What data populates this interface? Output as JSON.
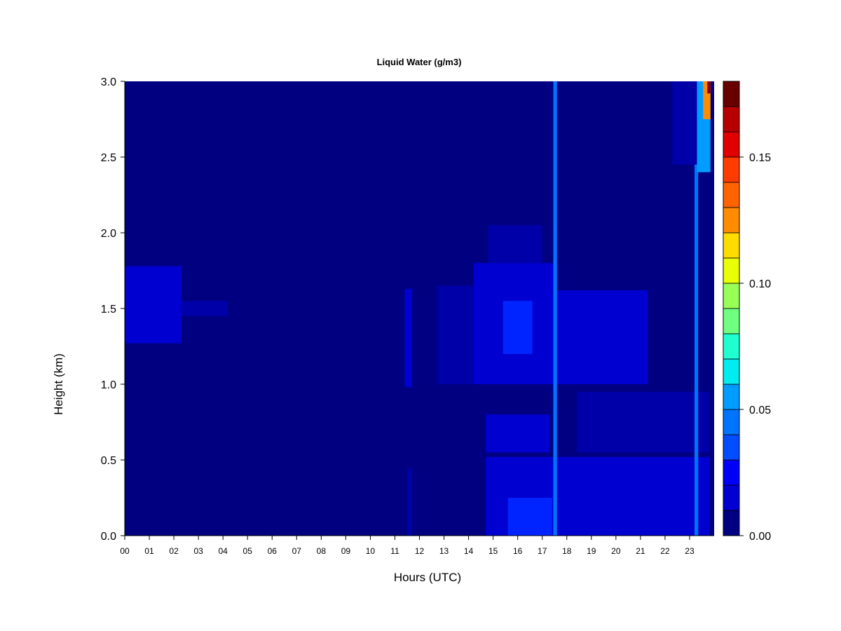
{
  "chart_data": {
    "type": "heatmap",
    "title": "Liquid Water (g/m3)",
    "xlabel": "Hours (UTC)",
    "ylabel": "Height (km)",
    "xlim": [
      0,
      24
    ],
    "ylim": [
      0.0,
      3.0
    ],
    "x_tick_labels": [
      "00",
      "01",
      "02",
      "03",
      "04",
      "05",
      "06",
      "07",
      "08",
      "09",
      "10",
      "11",
      "12",
      "13",
      "14",
      "15",
      "16",
      "17",
      "18",
      "19",
      "20",
      "21",
      "22",
      "23"
    ],
    "y_tick_labels": [
      "0.0",
      "0.5",
      "1.0",
      "1.5",
      "2.0",
      "2.5",
      "3.0"
    ],
    "colorbar": {
      "range": [
        0.0,
        0.18
      ],
      "tick_labels": [
        "0.00",
        "0.05",
        "0.10",
        "0.15"
      ],
      "tick_values": [
        0.0,
        0.05,
        0.1,
        0.15
      ],
      "levels": [
        0.0,
        0.01,
        0.02,
        0.03,
        0.04,
        0.05,
        0.06,
        0.07,
        0.08,
        0.09,
        0.1,
        0.11,
        0.12,
        0.13,
        0.14,
        0.15,
        0.16,
        0.17,
        0.18
      ],
      "colors": [
        "#000080",
        "#0000A8",
        "#0000D0",
        "#0000F8",
        "#0024FF",
        "#004CFF",
        "#0074FF",
        "#009CFF",
        "#00C4FF",
        "#00ECF0",
        "#20FFD0",
        "#48FFA8",
        "#70FF80",
        "#98FF58",
        "#C0FF30",
        "#E8FF08",
        "#FFDC00",
        "#FFB400",
        "#FF8C00",
        "#FF6400",
        "#FF3C00",
        "#FF1400",
        "#E00000",
        "#B80000",
        "#900000",
        "#680000"
      ]
    },
    "background_value": 0.0,
    "features": [
      {
        "x": [
          0.0,
          2.3
        ],
        "y": [
          1.27,
          1.78
        ],
        "value": 0.018
      },
      {
        "x": [
          2.3,
          4.2
        ],
        "y": [
          1.45,
          1.55
        ],
        "value": 0.012
      },
      {
        "x": [
          11.4,
          11.7
        ],
        "y": [
          0.98,
          1.63
        ],
        "value": 0.015
      },
      {
        "x": [
          11.5,
          11.7
        ],
        "y": [
          0.0,
          0.45
        ],
        "value": 0.012
      },
      {
        "x": [
          12.7,
          14.2
        ],
        "y": [
          1.0,
          1.65
        ],
        "value": 0.013
      },
      {
        "x": [
          14.2,
          17.6
        ],
        "y": [
          1.0,
          1.8
        ],
        "value": 0.02
      },
      {
        "x": [
          14.8,
          17.0
        ],
        "y": [
          1.8,
          2.05
        ],
        "value": 0.012
      },
      {
        "x": [
          15.4,
          16.6
        ],
        "y": [
          1.2,
          1.55
        ],
        "value": 0.03
      },
      {
        "x": [
          17.6,
          21.3
        ],
        "y": [
          1.0,
          1.62
        ],
        "value": 0.016
      },
      {
        "x": [
          14.7,
          23.8
        ],
        "y": [
          0.0,
          0.52
        ],
        "value": 0.02
      },
      {
        "x": [
          15.6,
          17.4
        ],
        "y": [
          0.0,
          0.25
        ],
        "value": 0.028
      },
      {
        "x": [
          14.7,
          17.3
        ],
        "y": [
          0.55,
          0.8
        ],
        "value": 0.015
      },
      {
        "x": [
          18.4,
          23.8
        ],
        "y": [
          0.55,
          0.95
        ],
        "value": 0.01
      },
      {
        "x": [
          17.45,
          17.6
        ],
        "y": [
          0.0,
          3.0
        ],
        "value": 0.045
      },
      {
        "x": [
          23.2,
          23.35
        ],
        "y": [
          0.0,
          3.0
        ],
        "value": 0.045
      },
      {
        "x": [
          22.3,
          23.3
        ],
        "y": [
          2.45,
          3.0
        ],
        "value": 0.01
      },
      {
        "x": [
          23.3,
          23.85
        ],
        "y": [
          2.4,
          3.0
        ],
        "value": 0.05
      },
      {
        "x": [
          23.55,
          23.85
        ],
        "y": [
          2.75,
          3.0
        ],
        "value": 0.13
      },
      {
        "x": [
          23.72,
          23.85
        ],
        "y": [
          2.92,
          3.0
        ],
        "value": 0.17
      }
    ]
  }
}
